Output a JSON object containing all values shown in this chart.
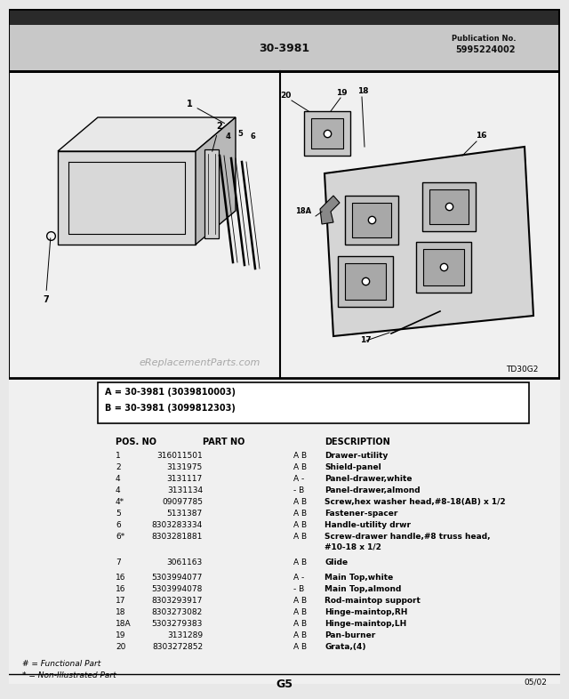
{
  "title_center": "30-3981",
  "title_right1": "Publication No.",
  "title_right2": "5995224002",
  "model_box": [
    "A = 30-3981 (3039810003)",
    "B = 30-3981 (3099812303)"
  ],
  "col_headers": [
    "POS. NO",
    "PART NO",
    "",
    "DESCRIPTION"
  ],
  "parts": [
    [
      "1",
      "316011501",
      "A B",
      "Drawer-utility"
    ],
    [
      "2",
      "3131975",
      "A B",
      "Shield-panel"
    ],
    [
      "4",
      "3131117",
      "A -",
      "Panel-drawer,white"
    ],
    [
      "4",
      "3131134",
      "- B",
      "Panel-drawer,almond"
    ],
    [
      "4*",
      "09097785",
      "A B",
      "Screw,hex washer head,#8-18(AB) x 1/2"
    ],
    [
      "5",
      "5131387",
      "A B",
      "Fastener-spacer"
    ],
    [
      "6",
      "8303283334",
      "A B",
      "Handle-utility drwr"
    ],
    [
      "6*",
      "8303281881",
      "A B",
      "Screw-drawer handle,#8 truss head,\n#10-18 x 1/2"
    ],
    [
      "7",
      "3061163",
      "A B",
      "Glide"
    ],
    [
      "16",
      "5303994077",
      "A -",
      "Main Top,white"
    ],
    [
      "16",
      "5303994078",
      "- B",
      "Main Top,almond"
    ],
    [
      "17",
      "8303293917",
      "A B",
      "Rod-maintop support"
    ],
    [
      "18",
      "8303273082",
      "A B",
      "Hinge-maintop,RH"
    ],
    [
      "18A",
      "5303279383",
      "A B",
      "Hinge-maintop,LH"
    ],
    [
      "19",
      "3131289",
      "A B",
      "Pan-burner"
    ],
    [
      "20",
      "8303272852",
      "A B",
      "Grata,(4)"
    ]
  ],
  "footnote1": "# = Functional Part",
  "footnote2": "* = Non-Illustrated Part",
  "page_label": "G5",
  "page_date": "05/02",
  "diagram_label": "TD30G2",
  "watermark": "eReplacementParts.com",
  "bg_color": "#e8e8e8",
  "inner_bg": "#ffffff",
  "border_color": "#000000",
  "text_color": "#000000"
}
